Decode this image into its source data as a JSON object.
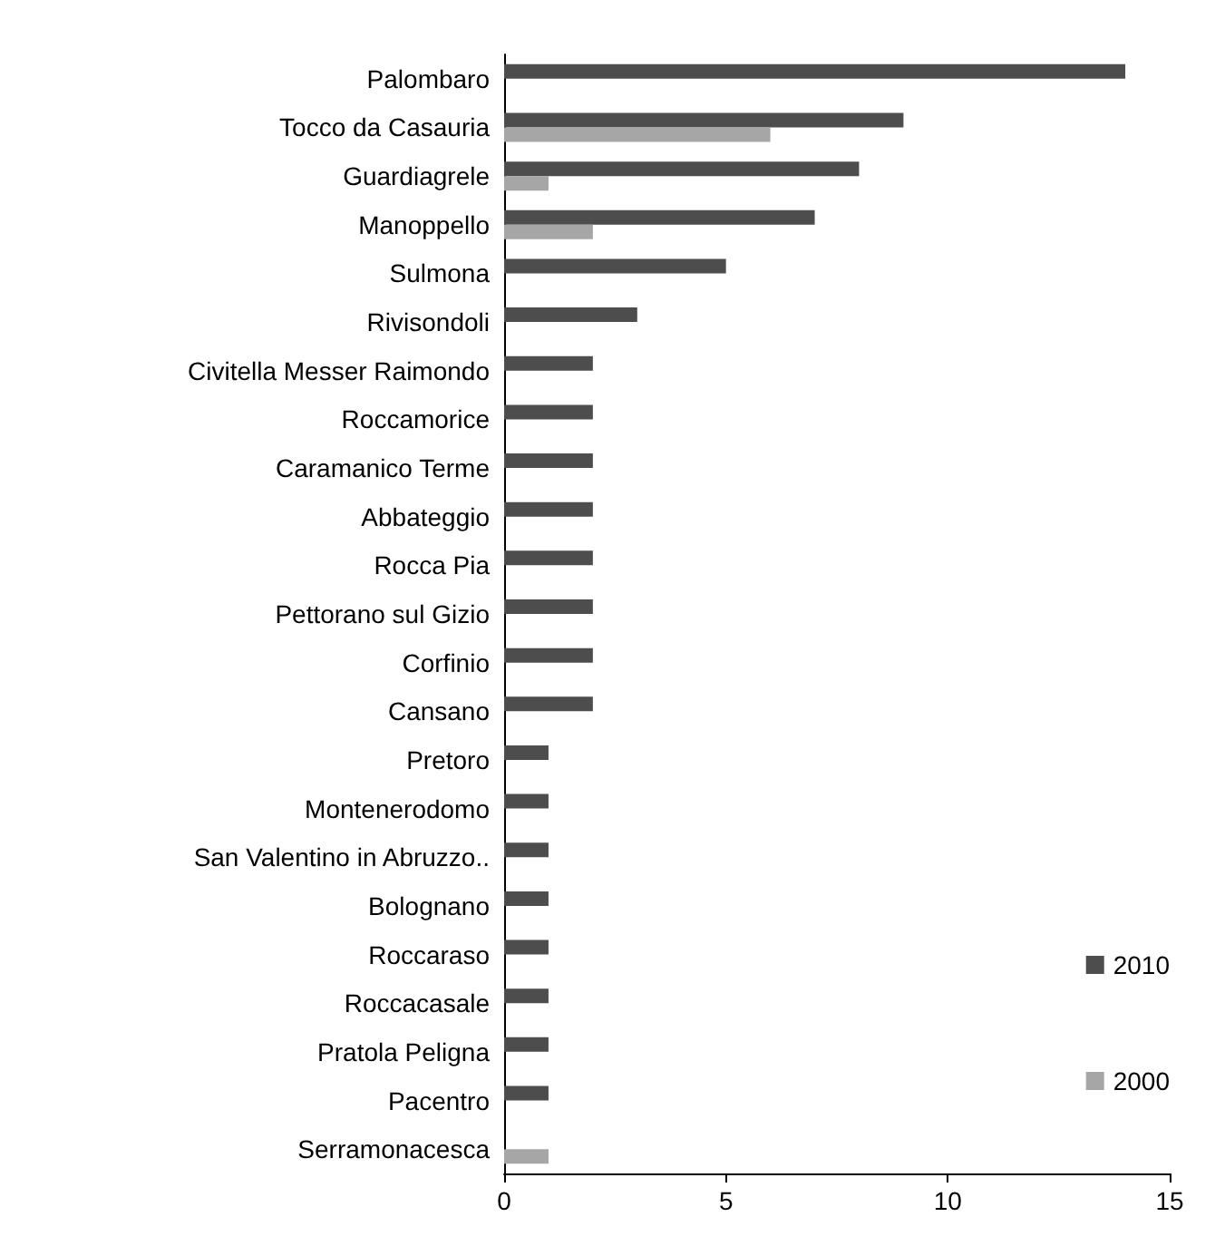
{
  "chart_data": {
    "type": "bar",
    "orientation": "horizontal",
    "categories": [
      "Palombaro",
      "Tocco da Casauria",
      "Guardiagrele",
      "Manoppello",
      "Sulmona",
      "Rivisondoli",
      "Civitella Messer Raimondo",
      "Roccamorice",
      "Caramanico Terme",
      "Abbateggio",
      "Rocca Pia",
      "Pettorano sul Gizio",
      "Corfinio",
      "Cansano",
      "Pretoro",
      "Montenerodomo",
      "San Valentino in Abruzzo..",
      "Bolognano",
      "Roccaraso",
      "Roccacasale",
      "Pratola Peligna",
      "Pacentro",
      "Serramonacesca"
    ],
    "series": [
      {
        "name": "2010",
        "color": "#4d4d4d",
        "values": [
          14,
          9,
          8,
          7,
          5,
          3,
          2,
          2,
          2,
          2,
          2,
          2,
          2,
          2,
          1,
          1,
          1,
          1,
          1,
          1,
          1,
          1,
          null
        ]
      },
      {
        "name": "2000",
        "color": "#a6a6a6",
        "values": [
          null,
          6,
          1,
          2,
          null,
          null,
          null,
          null,
          null,
          null,
          null,
          null,
          null,
          null,
          null,
          null,
          null,
          null,
          null,
          null,
          null,
          null,
          1
        ]
      }
    ],
    "xlim": [
      0,
      15
    ],
    "xticks": [
      0,
      5,
      10,
      15
    ],
    "grid": false,
    "legend": "right"
  }
}
